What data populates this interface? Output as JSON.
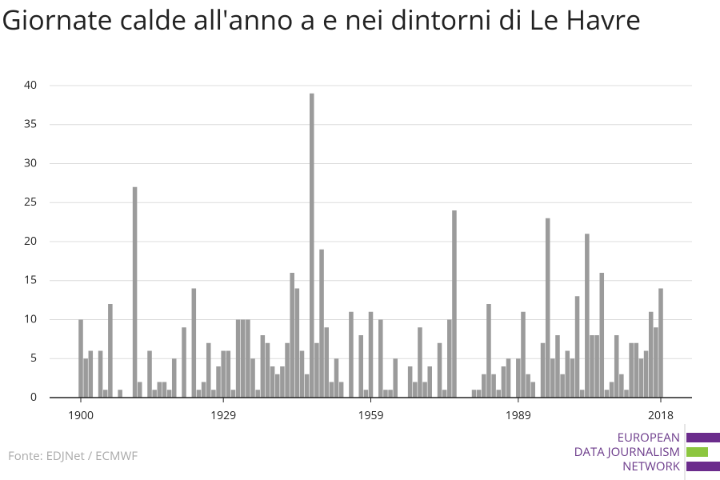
{
  "chart_data": {
    "type": "bar",
    "title": "Giornate calde all'anno a e nei dintorni di Le Havre",
    "source": "Fonte: EDJNet / ECMWF",
    "logo": [
      "EUROPEAN",
      "DATA JOURNALISM",
      "NETWORK"
    ],
    "color": "#9b9b9b",
    "grid": true,
    "x": [
      1900,
      1901,
      1902,
      1903,
      1904,
      1905,
      1906,
      1907,
      1908,
      1909,
      1910,
      1911,
      1912,
      1913,
      1914,
      1915,
      1916,
      1917,
      1918,
      1919,
      1920,
      1921,
      1922,
      1923,
      1924,
      1925,
      1926,
      1927,
      1928,
      1929,
      1930,
      1931,
      1932,
      1933,
      1934,
      1935,
      1936,
      1937,
      1938,
      1939,
      1940,
      1941,
      1942,
      1943,
      1944,
      1945,
      1946,
      1947,
      1948,
      1949,
      1950,
      1951,
      1952,
      1953,
      1954,
      1955,
      1956,
      1957,
      1958,
      1959,
      1960,
      1961,
      1962,
      1963,
      1964,
      1965,
      1966,
      1967,
      1968,
      1969,
      1970,
      1971,
      1972,
      1973,
      1974,
      1975,
      1976,
      1977,
      1978,
      1979,
      1980,
      1981,
      1982,
      1983,
      1984,
      1985,
      1986,
      1987,
      1988,
      1989,
      1990,
      1991,
      1992,
      1993,
      1994,
      1995,
      1996,
      1997,
      1998,
      1999,
      2000,
      2001,
      2002,
      2003,
      2004,
      2005,
      2006,
      2007,
      2008,
      2009,
      2010,
      2011,
      2012,
      2013,
      2014,
      2015,
      2016,
      2017,
      2018
    ],
    "values": [
      10,
      5,
      6,
      0,
      6,
      1,
      12,
      0,
      1,
      0,
      0,
      27,
      2,
      0,
      6,
      1,
      2,
      2,
      1,
      5,
      0,
      9,
      0,
      14,
      1,
      2,
      7,
      1,
      4,
      6,
      6,
      1,
      10,
      10,
      10,
      5,
      1,
      8,
      7,
      4,
      3,
      4,
      7,
      16,
      14,
      6,
      3,
      39,
      7,
      19,
      9,
      2,
      5,
      2,
      0,
      11,
      0,
      8,
      1,
      11,
      0,
      10,
      1,
      1,
      5,
      0,
      0,
      4,
      2,
      9,
      2,
      4,
      0,
      7,
      1,
      10,
      24,
      0,
      0,
      0,
      1,
      1,
      3,
      12,
      3,
      1,
      4,
      5,
      0,
      5,
      11,
      3,
      2,
      0,
      7,
      23,
      5,
      8,
      3,
      6,
      5,
      13,
      1,
      21,
      8,
      8,
      16,
      1,
      2,
      8,
      3,
      1,
      7,
      7,
      5,
      6,
      11,
      9,
      14
    ],
    "xlim": [
      1900,
      2018
    ],
    "xticks": [
      1900,
      1929,
      1959,
      1989,
      2018
    ],
    "ylim": [
      0,
      40
    ],
    "yticks": [
      0,
      5,
      10,
      15,
      20,
      25,
      30,
      35,
      40
    ]
  }
}
